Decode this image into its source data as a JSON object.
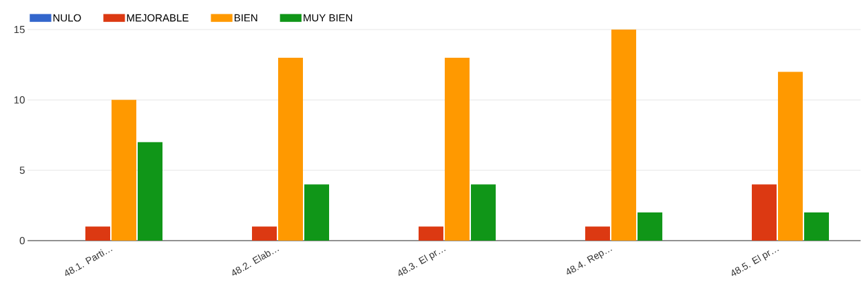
{
  "chart_data": {
    "type": "bar",
    "categories": [
      "48.1. Parti…",
      "48.2. Elab…",
      "48.3. El pr…",
      "48.4. Rep…",
      "48.5. El pr…"
    ],
    "series": [
      {
        "name": "NULO",
        "color": "#3366cc",
        "values": [
          0,
          0,
          0,
          0,
          0
        ]
      },
      {
        "name": "MEJORABLE",
        "color": "#dc3912",
        "values": [
          1,
          1,
          1,
          1,
          4
        ]
      },
      {
        "name": "BIEN",
        "color": "#ff9900",
        "values": [
          10,
          13,
          13,
          15,
          12
        ]
      },
      {
        "name": "MUY BIEN",
        "color": "#109618",
        "values": [
          7,
          4,
          4,
          2,
          2
        ]
      }
    ],
    "ylim": [
      0,
      15
    ],
    "yticks": [
      0,
      5,
      10,
      15
    ],
    "grid": "y",
    "legend": "top left"
  }
}
